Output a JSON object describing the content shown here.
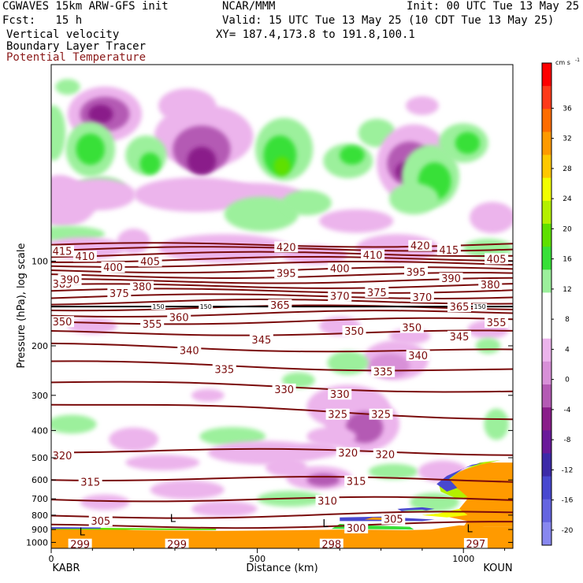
{
  "header": {
    "model": "CGWAVES 15km ARW-GFS init",
    "center": "NCAR/MMM",
    "init": "Init: 00 UTC Tue 13 May 25",
    "fcst": "Fcst:   15 h",
    "valid": "Valid: 15 UTC Tue 13 May 25 (10 CDT Tue 13 May 25)",
    "field1": "Vertical velocity",
    "field2": "Boundary Layer Tracer",
    "field3": "Potential Temperature",
    "xy": "XY= 187.4,173.8 to 191.8,100.1"
  },
  "colors": {
    "theta": "#7a0b0b",
    "field3_text": "#8b1a1a"
  },
  "chart_data": {
    "type": "contour",
    "ylabel": "Pressure (hPa), log scale",
    "xlabel": "Distance (km)",
    "left_station": "KABR",
    "right_station": "KOUN",
    "x_ticks": [
      0,
      500,
      1000
    ],
    "x_range": [
      0,
      1120
    ],
    "y_ticks": [
      100,
      200,
      300,
      400,
      500,
      600,
      700,
      800,
      900,
      1000
    ],
    "y_range": [
      1050,
      20
    ],
    "y_scale": "log",
    "colorbar": {
      "unit": "cm s",
      "unit_exp": "-1",
      "ticks": [
        36,
        32,
        28,
        24,
        20,
        16,
        12,
        8,
        4,
        0,
        -4,
        -8,
        -12,
        -16,
        -20
      ],
      "levels": [
        {
          "v": 40,
          "c": "#ff0000"
        },
        {
          "v": 36,
          "c": "#ff3a1a"
        },
        {
          "v": 32,
          "c": "#ff6d00"
        },
        {
          "v": 28,
          "c": "#ff9a00"
        },
        {
          "v": 24,
          "c": "#ffc800"
        },
        {
          "v": 20,
          "c": "#f2ff00"
        },
        {
          "v": 16,
          "c": "#b4f000"
        },
        {
          "v": 12,
          "c": "#5ee000"
        },
        {
          "v": 8,
          "c": "#38e038"
        },
        {
          "v": 4,
          "c": "#9cf09c"
        },
        {
          "v": 2,
          "c": "#ffffff"
        },
        {
          "v": -2,
          "c": "#ffffff"
        },
        {
          "v": -4,
          "c": "#ecb4ec"
        },
        {
          "v": -6,
          "c": "#d890d8"
        },
        {
          "v": -8,
          "c": "#b45ab4"
        },
        {
          "v": -10,
          "c": "#8a1e8a"
        },
        {
          "v": -12,
          "c": "#6a1a9a"
        },
        {
          "v": -14,
          "c": "#3c2aa8"
        },
        {
          "v": -16,
          "c": "#4848d0"
        },
        {
          "v": -18,
          "c": "#6464e0"
        },
        {
          "v": -20,
          "c": "#8888f0"
        }
      ]
    },
    "theta_labels": [
      {
        "t": "415",
        "x": 25,
        "p": 92
      },
      {
        "t": "410",
        "x": 82,
        "p": 96
      },
      {
        "t": "400",
        "x": 150,
        "p": 105
      },
      {
        "t": "405",
        "x": 240,
        "p": 100
      },
      {
        "t": "420",
        "x": 570,
        "p": 89
      },
      {
        "t": "410",
        "x": 780,
        "p": 95
      },
      {
        "t": "420",
        "x": 895,
        "p": 88
      },
      {
        "t": "415",
        "x": 965,
        "p": 91
      },
      {
        "t": "405",
        "x": 1080,
        "p": 98
      },
      {
        "t": "395",
        "x": 570,
        "p": 110
      },
      {
        "t": "400",
        "x": 700,
        "p": 106
      },
      {
        "t": "395",
        "x": 885,
        "p": 109
      },
      {
        "t": "390",
        "x": 970,
        "p": 115
      },
      {
        "t": "380",
        "x": 1065,
        "p": 121
      },
      {
        "t": "385",
        "x": -15,
        "p": 120
      },
      {
        "t": "390",
        "x": 45,
        "p": 116
      },
      {
        "t": "375",
        "x": 165,
        "p": 130
      },
      {
        "t": "380",
        "x": 220,
        "p": 123
      },
      {
        "t": "370",
        "x": 700,
        "p": 133
      },
      {
        "t": "375",
        "x": 790,
        "p": 129
      },
      {
        "t": "370",
        "x": 900,
        "p": 134
      },
      {
        "t": "365",
        "x": 555,
        "p": 143
      },
      {
        "t": "365",
        "x": 990,
        "p": 145
      },
      {
        "t": "360",
        "x": 310,
        "p": 158
      },
      {
        "t": "355",
        "x": 245,
        "p": 167
      },
      {
        "t": "350",
        "x": 0,
        "p": 164
      },
      {
        "t": "355",
        "x": 1080,
        "p": 165
      },
      {
        "t": "350",
        "x": 735,
        "p": 177
      },
      {
        "t": "350",
        "x": 875,
        "p": 172
      },
      {
        "t": "345",
        "x": 510,
        "p": 190
      },
      {
        "t": "345",
        "x": 990,
        "p": 185
      },
      {
        "t": "340",
        "x": 335,
        "p": 207
      },
      {
        "t": "340",
        "x": 890,
        "p": 216
      },
      {
        "t": "335",
        "x": 420,
        "p": 242
      },
      {
        "t": "335",
        "x": 805,
        "p": 247
      },
      {
        "t": "330",
        "x": 565,
        "p": 285
      },
      {
        "t": "330",
        "x": 700,
        "p": 297
      },
      {
        "t": "325",
        "x": 695,
        "p": 350
      },
      {
        "t": "325",
        "x": 800,
        "p": 350
      },
      {
        "t": "320",
        "x": 10,
        "p": 490
      },
      {
        "t": "320",
        "x": 720,
        "p": 480
      },
      {
        "t": "320",
        "x": 810,
        "p": 485
      },
      {
        "t": "315",
        "x": 95,
        "p": 608
      },
      {
        "t": "315",
        "x": 740,
        "p": 605
      },
      {
        "t": "310",
        "x": 670,
        "p": 710
      },
      {
        "t": "305",
        "x": 120,
        "p": 838
      },
      {
        "t": "305",
        "x": 830,
        "p": 825
      },
      {
        "t": "300",
        "x": 740,
        "p": 888
      },
      {
        "t": "299",
        "x": 70,
        "p": 1015
      },
      {
        "t": "299",
        "x": 305,
        "p": 1015
      },
      {
        "t": "298",
        "x": 680,
        "p": 1015
      },
      {
        "t": "297",
        "x": 1030,
        "p": 1010
      },
      {
        "t": "150",
        "x": 260,
        "p": 145
      },
      {
        "t": "150",
        "x": 375,
        "p": 145
      },
      {
        "t": "150",
        "x": 1040,
        "p": 145
      }
    ],
    "L_markers": [
      {
        "x": 75,
        "p": 915
      },
      {
        "x": 295,
        "p": 820
      },
      {
        "x": 665,
        "p": 855
      },
      {
        "x": 1015,
        "p": 890
      }
    ]
  }
}
